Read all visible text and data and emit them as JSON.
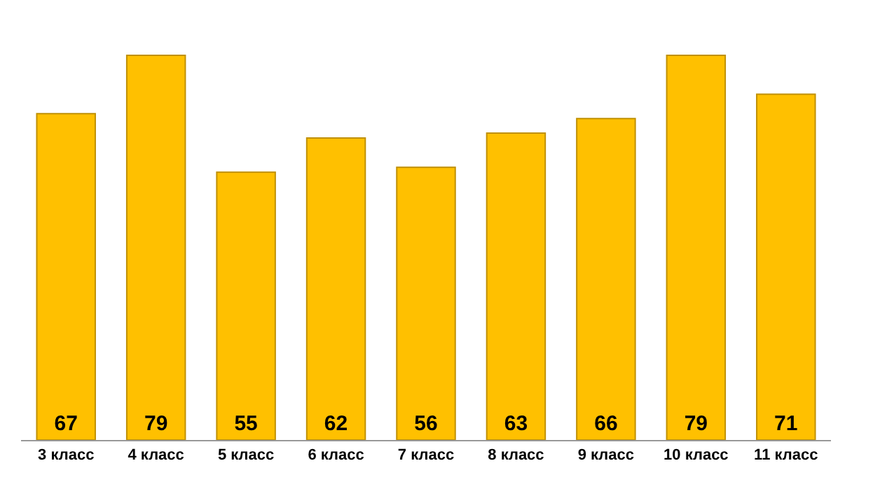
{
  "chart_data": {
    "type": "bar",
    "categories": [
      "3 класс",
      "4 класс",
      "5 класс",
      "6 класс",
      "7 класс",
      "8 класс",
      "9 класс",
      "10 класс",
      "11 класс"
    ],
    "values": [
      67,
      79,
      55,
      62,
      56,
      63,
      66,
      79,
      71
    ],
    "color": "#ffc000",
    "data_labels": true
  }
}
